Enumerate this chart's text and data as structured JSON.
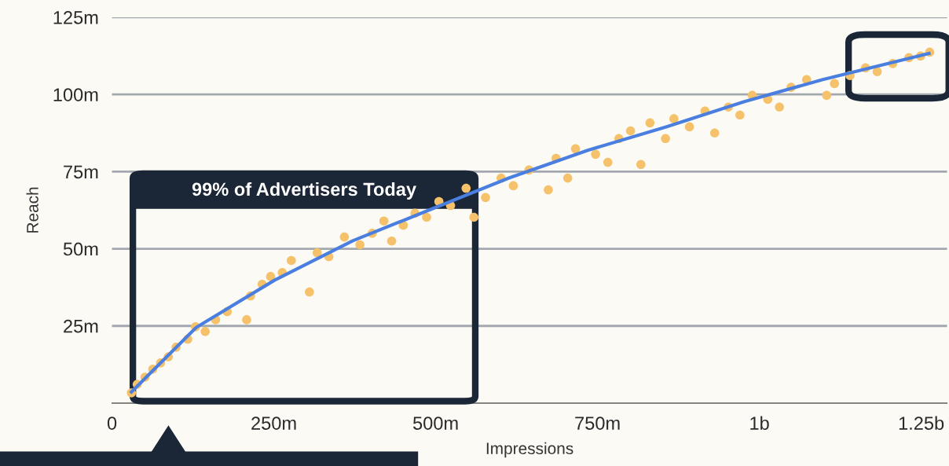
{
  "chart_data": {
    "type": "scatter",
    "xlabel": "Impressions",
    "ylabel": "Reach",
    "annotations": [
      "99% of Advertisers Today"
    ],
    "xlim": [
      0,
      1290000000
    ],
    "ylim": [
      0,
      125
    ],
    "xticks": [
      0,
      {
        "value": 250000000,
        "label": "250m"
      },
      {
        "value": 500000000,
        "label": "500m"
      },
      {
        "value": 750000000,
        "label": "750m"
      },
      {
        "value": 1000000000,
        "label": "1b"
      },
      {
        "value": 1250000000,
        "label": "1.25b"
      }
    ],
    "yticks": [
      {
        "value": 25,
        "label": "25m"
      },
      {
        "value": 50,
        "label": "50m"
      },
      {
        "value": 75,
        "label": "75m"
      },
      {
        "value": 100,
        "label": "100m"
      },
      {
        "value": 125,
        "label": "125m"
      }
    ],
    "grid": "y",
    "marker": "circle",
    "series": [
      {
        "color": "#f5c26b",
        "x": [
          30000000,
          39000000,
          51000000,
          63000000,
          75000000,
          87000000,
          99000000,
          117000000,
          129000000,
          144000000,
          160000000,
          178000000,
          208000000,
          214000000,
          232000000,
          245000000,
          263000000,
          277000000,
          305000000,
          317000000,
          335000000,
          359000000,
          383000000,
          402000000,
          420000000,
          432000000,
          450000000,
          468000000,
          486000000,
          505000000,
          523000000,
          547000000,
          559000000,
          577000000,
          601000000,
          620000000,
          644000000,
          674000000,
          686000000,
          704000000,
          716000000,
          747000000,
          766000000,
          783000000,
          801000000,
          817000000,
          831000000,
          855000000,
          868000000,
          892000000,
          916000000,
          931000000,
          952000000,
          970000000,
          989000000,
          1013000000,
          1031000000,
          1049000000,
          1073000000,
          1104000000,
          1116000000,
          1140000000,
          1164000000,
          1182000000,
          1206000000,
          1231000000,
          1249000000,
          1263000000
        ],
        "values": [
          3.3,
          6.1,
          8.4,
          11,
          13,
          15,
          18.1,
          20.7,
          24.7,
          23.2,
          27,
          29.6,
          27,
          34.7,
          38.5,
          41,
          42.3,
          46.2,
          36,
          48.7,
          47.4,
          53.8,
          51.3,
          55,
          59,
          52.5,
          57.6,
          61.5,
          60.2,
          65.3,
          64,
          69.6,
          60.2,
          66.6,
          72.9,
          70.4,
          75.5,
          69.1,
          79.3,
          72.9,
          82.4,
          80.6,
          78,
          85.7,
          88.2,
          77.3,
          90.8,
          85.7,
          92.1,
          89.5,
          94.6,
          87.5,
          95.9,
          93.3,
          99.7,
          98.4,
          95.9,
          102.3,
          104.8,
          99.7,
          103.5,
          106.1,
          108.6,
          107.4,
          110,
          111.9,
          112.4,
          113.7
        ]
      },
      {
        "type": "line",
        "color": "#4a7fe0",
        "line_style": "solid",
        "marker": "none",
        "x": [
          30000000,
          130000000,
          251000000,
          372000000,
          493000000,
          614000000,
          735000000,
          856000000,
          977000000,
          1098000000,
          1262000000
        ],
        "values": [
          3.6,
          24.5,
          39.8,
          52.6,
          62.8,
          73,
          81.9,
          89.5,
          97.7,
          104.8,
          113.3
        ]
      }
    ]
  }
}
